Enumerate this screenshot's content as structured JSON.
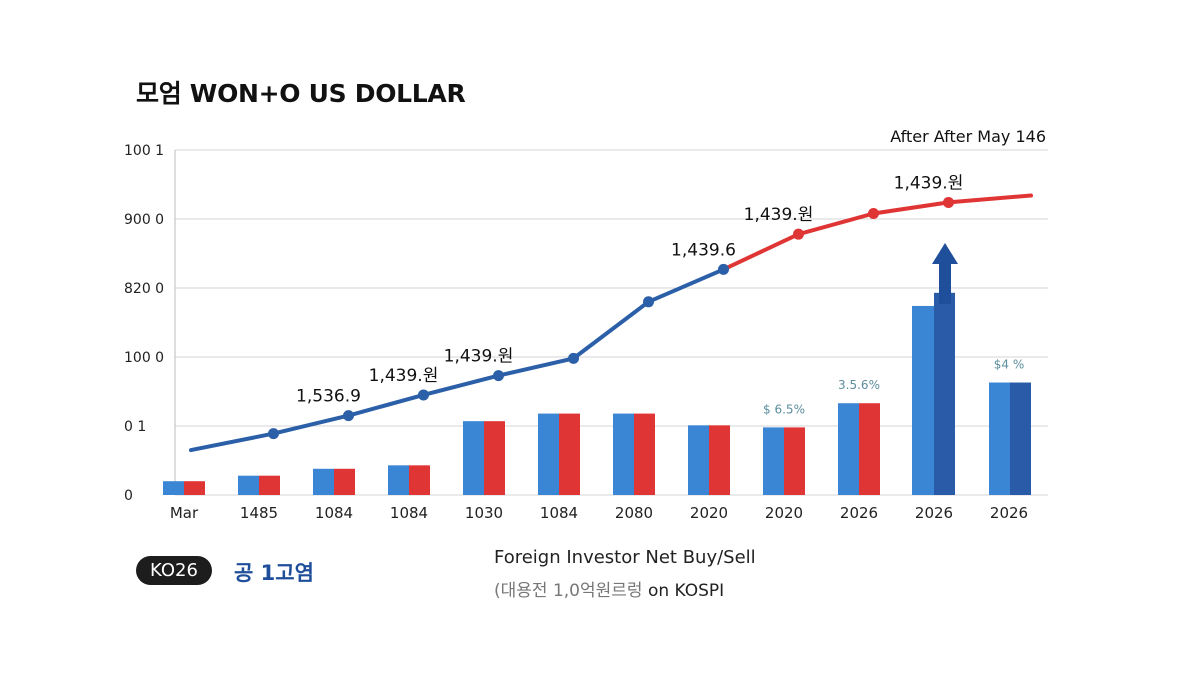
{
  "header": {
    "title": "모엄 WON+O US DOLLAR",
    "note": "After After May 146"
  },
  "footer": {
    "badge": "KO26",
    "badge_label": "공 1고염",
    "subtitle_line1": "Foreign Investor Net Buy/Sell",
    "subtitle_line2_prefix": "(대용전 1,0억원르렁",
    "subtitle_line2_suffix": " on KOSPI"
  },
  "colors": {
    "line_blue": "#2b5fa8",
    "line_red": "#e03535",
    "bar_blue": "#3a86d4",
    "bar_red": "#e03535",
    "bar_dark": "#2a5ba8",
    "grid": "#d4d4d4",
    "pct_label": "#5b8e9e"
  },
  "chart_data": {
    "type": "bar",
    "categories": [
      "Mar",
      "1485",
      "1084",
      "1084",
      "1030",
      "1084",
      "2080",
      "2020",
      "2020",
      "2026",
      "2026",
      "2026"
    ],
    "y_tick_labels": [
      "0",
      "0 1",
      "100 0",
      "820 0",
      "900 0",
      "100 1"
    ],
    "ylim": [
      0,
      5
    ],
    "grid": true,
    "bars": {
      "blue": [
        0.2,
        0.28,
        0.38,
        0.43,
        1.07,
        1.18,
        1.18,
        1.01,
        0.98,
        1.33,
        2.74,
        1.63
      ],
      "red": [
        0.2,
        0.28,
        0.38,
        0.43,
        1.07,
        1.18,
        1.18,
        1.01,
        0.98,
        1.33,
        2.93,
        1.63
      ]
    },
    "bar_labels": [
      {
        "index": 8,
        "text": "$ 6.5%"
      },
      {
        "index": 9,
        "text": "3.5.6%"
      },
      {
        "index": 11,
        "text": "$4 %"
      }
    ],
    "line": {
      "x": [
        -0.2,
        0.9,
        1.9,
        2.9,
        3.9,
        4.9,
        5.9,
        6.9,
        7.9,
        8.9,
        9.9,
        11.0
      ],
      "y": [
        0.65,
        0.89,
        1.15,
        1.45,
        1.73,
        1.98,
        2.8,
        3.27,
        3.78,
        4.08,
        4.24,
        4.34
      ],
      "color_change_index": 7
    },
    "point_labels": [
      {
        "index": 2,
        "text": "1,536.9"
      },
      {
        "index": 3,
        "text": "1,439.원"
      },
      {
        "index": 4,
        "text": "1,439.원"
      },
      {
        "index": 7,
        "text": "1,439.6"
      },
      {
        "index": 8,
        "text": "1,439.원"
      },
      {
        "index": 10,
        "text": "1,439.원"
      }
    ]
  }
}
